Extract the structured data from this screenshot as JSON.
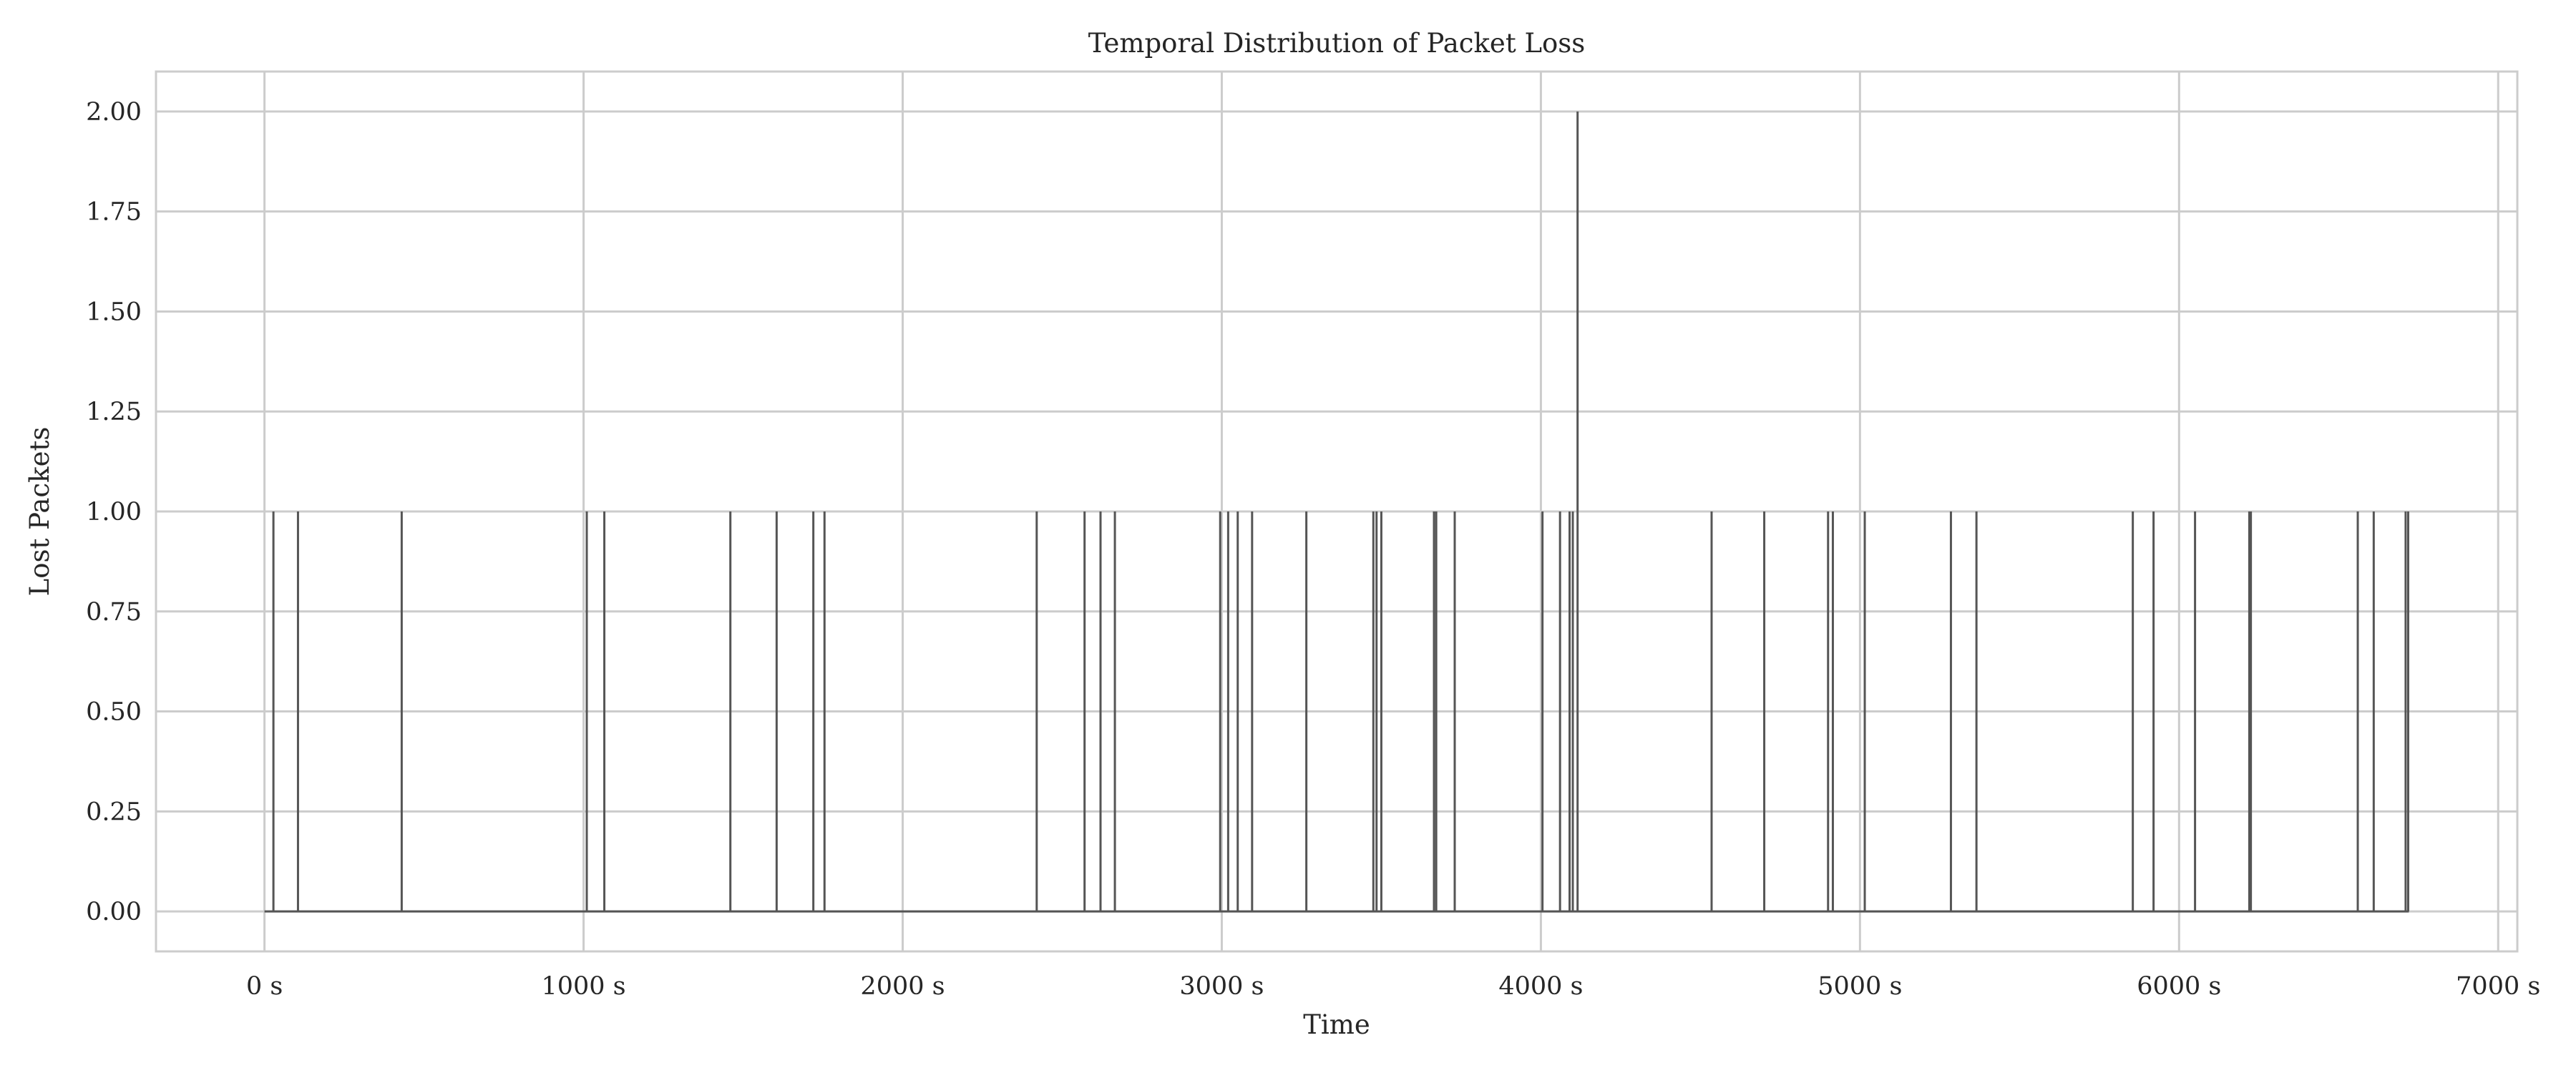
{
  "chart_data": {
    "type": "line",
    "title": "Temporal Distribution of Packet Loss",
    "xlabel": "Time",
    "ylabel": "Lost Packets",
    "xlim": [
      -340,
      7060
    ],
    "ylim": [
      -0.1,
      2.1
    ],
    "grid": true,
    "x_ticks": [
      0,
      1000,
      2000,
      3000,
      4000,
      5000,
      6000,
      7000
    ],
    "x_tick_labels": [
      "0 s",
      "1000 s",
      "2000 s",
      "3000 s",
      "4000 s",
      "5000 s",
      "6000 s",
      "7000 s"
    ],
    "y_ticks": [
      0,
      0.25,
      0.5,
      0.75,
      1.0,
      1.25,
      1.5,
      1.75,
      2.0
    ],
    "y_tick_labels": [
      "0.00",
      "0.25",
      "0.50",
      "0.75",
      "1.00",
      "1.25",
      "1.50",
      "1.75",
      "2.00"
    ],
    "x_range": [
      0,
      6720
    ],
    "loss_events": [
      {
        "t": 28,
        "count": 1
      },
      {
        "t": 105,
        "count": 1
      },
      {
        "t": 430,
        "count": 1
      },
      {
        "t": 1010,
        "count": 1
      },
      {
        "t": 1065,
        "count": 1
      },
      {
        "t": 1460,
        "count": 1
      },
      {
        "t": 1605,
        "count": 1
      },
      {
        "t": 1720,
        "count": 1
      },
      {
        "t": 1755,
        "count": 1
      },
      {
        "t": 2420,
        "count": 1
      },
      {
        "t": 2570,
        "count": 1
      },
      {
        "t": 2620,
        "count": 1
      },
      {
        "t": 2665,
        "count": 1
      },
      {
        "t": 2995,
        "count": 1
      },
      {
        "t": 3020,
        "count": 1
      },
      {
        "t": 3050,
        "count": 1
      },
      {
        "t": 3095,
        "count": 1
      },
      {
        "t": 3265,
        "count": 1
      },
      {
        "t": 3475,
        "count": 1
      },
      {
        "t": 3485,
        "count": 1
      },
      {
        "t": 3500,
        "count": 1
      },
      {
        "t": 3665,
        "count": 1
      },
      {
        "t": 3672,
        "count": 1
      },
      {
        "t": 3730,
        "count": 1
      },
      {
        "t": 4005,
        "count": 1
      },
      {
        "t": 4060,
        "count": 1
      },
      {
        "t": 4090,
        "count": 1
      },
      {
        "t": 4100,
        "count": 1
      },
      {
        "t": 4115,
        "count": 2
      },
      {
        "t": 4535,
        "count": 1
      },
      {
        "t": 4700,
        "count": 1
      },
      {
        "t": 4900,
        "count": 1
      },
      {
        "t": 4915,
        "count": 1
      },
      {
        "t": 5015,
        "count": 1
      },
      {
        "t": 5285,
        "count": 1
      },
      {
        "t": 5365,
        "count": 1
      },
      {
        "t": 5855,
        "count": 1
      },
      {
        "t": 5920,
        "count": 1
      },
      {
        "t": 6050,
        "count": 1
      },
      {
        "t": 6220,
        "count": 1
      },
      {
        "t": 6225,
        "count": 1
      },
      {
        "t": 6560,
        "count": 1
      },
      {
        "t": 6610,
        "count": 1
      },
      {
        "t": 6710,
        "count": 1
      },
      {
        "t": 6718,
        "count": 1
      }
    ],
    "series": [
      {
        "color": "#555555"
      }
    ]
  }
}
